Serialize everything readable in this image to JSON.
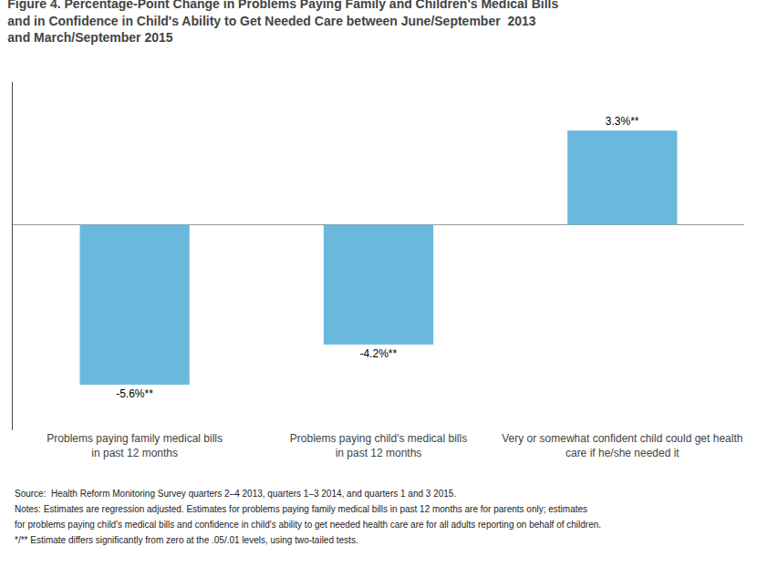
{
  "chart_data": {
    "type": "bar",
    "title": "Figure 4. Percentage-Point Change in Problems Paying Family and Children's Medical Bills\nand in Confidence in Child's Ability to Get Needed Care between June/September  2013\nand March/September 2015",
    "categories": [
      "Problems paying family medical bills\nin past 12 months",
      "Problems paying child's medical bills\nin past 12 months",
      "Very or somewhat confident child could get health\ncare if he/she needed it"
    ],
    "values": [
      -5.6,
      -4.2,
      3.3
    ],
    "value_labels": [
      "-5.6%**",
      "-4.2%**",
      "3.3%**"
    ],
    "data_labels": true,
    "color": "#6BB8DD",
    "ylim": [
      -7.2,
      5.0
    ],
    "tick_labels": "x",
    "grid": false,
    "annotations": [
      "Source:  Health Reform Monitoring Survey quarters 2–4 2013, quarters 1–3 2014, and quarters 1 and 3 2015.",
      "Notes: Estimates are regression adjusted. Estimates for problems paying family medical bills in past 12 months are for parents only; estimates",
      "for problems paying child's medical bills and confidence in child's ability to get needed health care are for all adults reporting on behalf of children.",
      "*/** Estimate differs significantly from zero at the .05/.01 levels, using two-tailed tests."
    ]
  }
}
